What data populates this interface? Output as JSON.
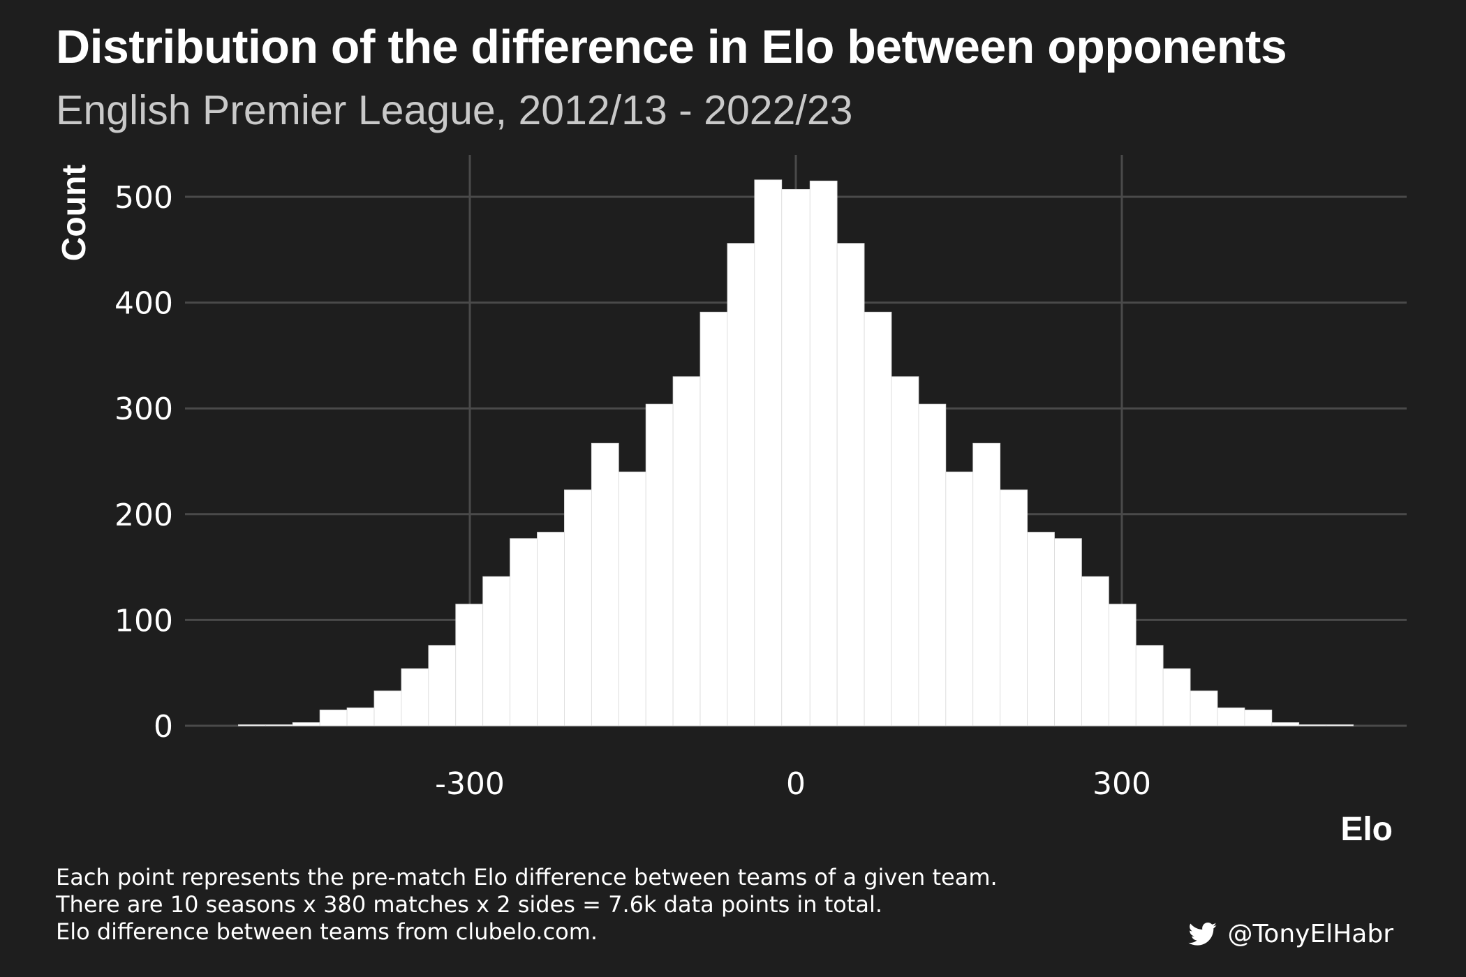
{
  "chart_data": {
    "type": "bar",
    "title": "Distribution of the difference in Elo between opponents",
    "subtitle": "English Premier League, 2012/13 - 2022/23",
    "xlabel": "Elo",
    "ylabel": "Count",
    "xlim": [
      -563,
      563
    ],
    "ylim": [
      0,
      500
    ],
    "xticks": [
      -300,
      0,
      300
    ],
    "yticks": [
      0,
      100,
      200,
      300,
      400,
      500
    ],
    "bin_edges": [
      -513,
      -488,
      -463,
      -438,
      -413,
      -388,
      -363,
      -338,
      -313,
      -288,
      -263,
      -238,
      -213,
      -188,
      -163,
      -138,
      -113,
      -88,
      -63,
      -38,
      -13,
      13,
      38,
      63,
      88,
      113,
      138,
      163,
      188,
      213,
      238,
      263,
      288,
      313,
      338,
      363,
      388,
      413,
      438,
      463,
      488,
      513
    ],
    "values": [
      1,
      1,
      3,
      15,
      17,
      33,
      54,
      76,
      115,
      141,
      177,
      183,
      223,
      267,
      240,
      304,
      330,
      391,
      456,
      516,
      507,
      515,
      456,
      391,
      330,
      304,
      240,
      267,
      223,
      183,
      177,
      141,
      115,
      76,
      54,
      33,
      17,
      15,
      3,
      1,
      1
    ],
    "grid": true,
    "bar_color": "#ffffff",
    "background": "#1e1e1e",
    "grid_color": "#4a4a4a"
  },
  "caption_lines": [
    "Each point represents the pre-match Elo difference between teams of a given team.",
    "There are 10 seasons x 380 matches x 2 sides = 7.6k data points in total.",
    "Elo difference between teams from clubelo.com."
  ],
  "attribution": {
    "icon": "twitter-icon",
    "handle": "@TonyElHabr"
  }
}
